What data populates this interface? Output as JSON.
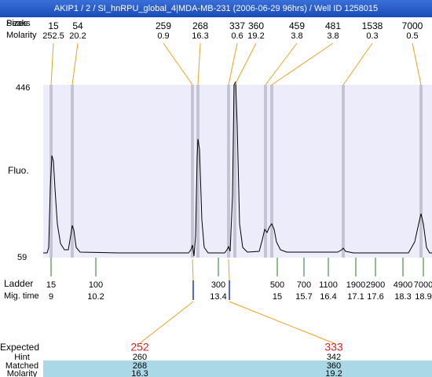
{
  "header": {
    "title": "AKIP1 / 2 / SI_hnRPU_global_4|MDA-MB-231 (2006-06-29 96hrs) / Well ID 1258015"
  },
  "peaks": {
    "label_peaks": "Peaks",
    "label_sizes": "Sizes",
    "label_molarity": "Molarity",
    "sizes": [
      "15",
      "54",
      "259",
      "268",
      "337",
      "360",
      "459",
      "481",
      "1538",
      "7000"
    ],
    "molarity": [
      "252.5",
      "20.2",
      "0.9",
      "16.3",
      "0.6",
      "19.2",
      "3.8",
      "3.8",
      "0.3",
      "0.5"
    ]
  },
  "axis": {
    "label": "Fluo.",
    "top": "446",
    "bottom": "59"
  },
  "ladder": {
    "label": "Ladder",
    "mig_label": "Mig. time",
    "sizes": [
      "15",
      "100",
      "300",
      "500",
      "700",
      "1100",
      "1900",
      "2900",
      "4900",
      "7000"
    ],
    "mig_times": [
      "9",
      "10.2",
      "13.4",
      "15",
      "15.7",
      "16.4",
      "17.1",
      "17.6",
      "18.3",
      "18.9"
    ]
  },
  "expected": {
    "label": "Expected",
    "hint_label": "Hint",
    "matched_label": "Matched",
    "molarity_label": "Molarity",
    "expected": [
      "252",
      "333"
    ],
    "hint": [
      "260",
      "342"
    ],
    "matched": [
      "268",
      "360"
    ],
    "molarity": [
      "16.3",
      "19.2"
    ]
  }
}
